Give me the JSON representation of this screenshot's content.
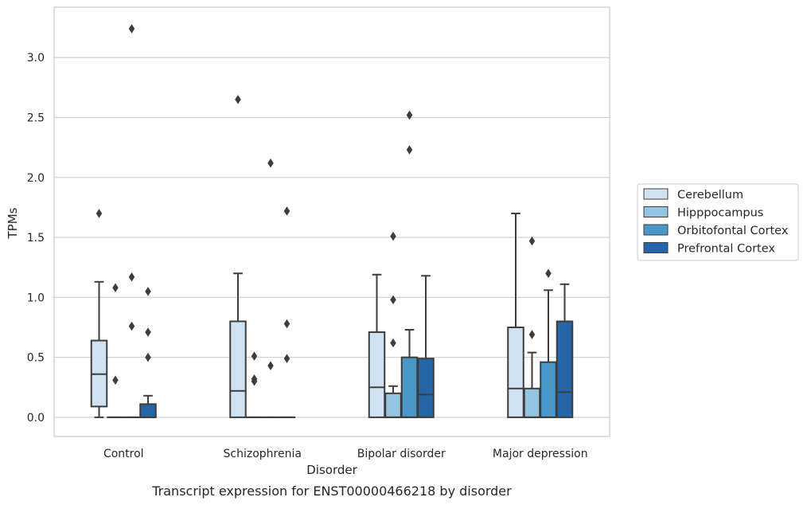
{
  "chart_data": {
    "type": "box",
    "title": "Transcript expression for ENST00000466218 by disorder",
    "xlabel": "Disorder",
    "ylabel": "TPMs",
    "categories": [
      "Control",
      "Schizophrenia",
      "Bipolar disorder",
      "Major depression"
    ],
    "ylim": [
      -0.16,
      3.42
    ],
    "yticks": [
      0.0,
      0.5,
      1.0,
      1.5,
      2.0,
      2.5,
      3.0
    ],
    "ytick_labels": [
      "0.0",
      "0.5",
      "1.0",
      "1.5",
      "2.0",
      "2.5",
      "3.0"
    ],
    "grid": true,
    "legend_position": "right",
    "series": [
      {
        "name": "Cerebellum",
        "color": "#d0e1f2",
        "boxes": [
          {
            "min": 0.0,
            "q1": 0.09,
            "median": 0.36,
            "q3": 0.64,
            "max": 1.13,
            "outliers": [
              1.7
            ]
          },
          {
            "min": 0.0,
            "q1": 0.0,
            "median": 0.22,
            "q3": 0.8,
            "max": 1.2,
            "outliers": [
              2.65
            ]
          },
          {
            "min": 0.0,
            "q1": 0.0,
            "median": 0.25,
            "q3": 0.71,
            "max": 1.19,
            "outliers": []
          },
          {
            "min": 0.0,
            "q1": 0.0,
            "median": 0.24,
            "q3": 0.75,
            "max": 1.7,
            "outliers": []
          }
        ]
      },
      {
        "name": "Hipppocampus",
        "color": "#94c4df",
        "boxes": [
          {
            "min": 0.0,
            "q1": 0.0,
            "median": 0.0,
            "q3": 0.0,
            "max": 0.0,
            "outliers": [
              0.31,
              1.08
            ]
          },
          {
            "min": 0.0,
            "q1": 0.0,
            "median": 0.0,
            "q3": 0.0,
            "max": 0.0,
            "outliers": [
              0.3,
              0.32,
              0.51
            ]
          },
          {
            "min": 0.0,
            "q1": 0.0,
            "median": 0.0,
            "q3": 0.2,
            "max": 0.26,
            "outliers": [
              0.62,
              0.98,
              1.51
            ]
          },
          {
            "min": 0.0,
            "q1": 0.0,
            "median": 0.0,
            "q3": 0.24,
            "max": 0.54,
            "outliers": [
              0.69,
              1.47
            ]
          }
        ]
      },
      {
        "name": "Orbitofontal Cortex",
        "color": "#4a98c9",
        "boxes": [
          {
            "min": 0.0,
            "q1": 0.0,
            "median": 0.0,
            "q3": 0.0,
            "max": 0.0,
            "outliers": [
              0.76,
              1.17,
              3.24
            ]
          },
          {
            "min": 0.0,
            "q1": 0.0,
            "median": 0.0,
            "q3": 0.0,
            "max": 0.0,
            "outliers": [
              0.43,
              2.12
            ]
          },
          {
            "min": 0.0,
            "q1": 0.0,
            "median": 0.0,
            "q3": 0.5,
            "max": 0.73,
            "outliers": [
              2.23,
              2.52
            ]
          },
          {
            "min": 0.0,
            "q1": 0.0,
            "median": 0.0,
            "q3": 0.46,
            "max": 1.06,
            "outliers": [
              1.2
            ]
          }
        ]
      },
      {
        "name": "Prefrontal Cortex",
        "color": "#2466a8",
        "boxes": [
          {
            "min": 0.0,
            "q1": 0.0,
            "median": 0.0,
            "q3": 0.11,
            "max": 0.18,
            "outliers": [
              0.5,
              0.71,
              1.05
            ]
          },
          {
            "min": 0.0,
            "q1": 0.0,
            "median": 0.0,
            "q3": 0.0,
            "max": 0.0,
            "outliers": [
              0.49,
              0.78,
              1.72
            ]
          },
          {
            "min": 0.0,
            "q1": 0.0,
            "median": 0.19,
            "q3": 0.49,
            "max": 1.18,
            "outliers": []
          },
          {
            "min": 0.0,
            "q1": 0.0,
            "median": 0.21,
            "q3": 0.8,
            "max": 1.11,
            "outliers": []
          }
        ]
      }
    ]
  }
}
